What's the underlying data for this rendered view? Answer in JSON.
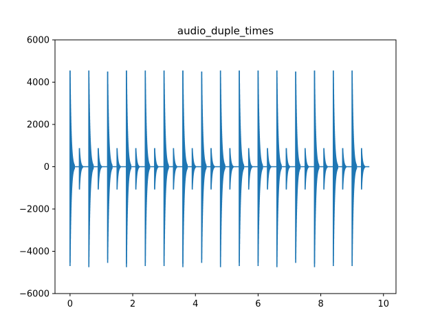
{
  "chart_data": {
    "type": "line",
    "title": "audio_duple_times",
    "xlabel": "",
    "ylabel": "",
    "xlim": [
      -0.48,
      10.4
    ],
    "ylim": [
      -6000,
      6000
    ],
    "x_ticks": [
      0,
      2,
      4,
      6,
      8,
      10
    ],
    "y_ticks": [
      -6000,
      -4000,
      -2000,
      0,
      2000,
      4000,
      6000
    ],
    "grid": false,
    "series": [
      {
        "color": "#1f77b4",
        "signal_end_x": 9.55,
        "strong_beats": [
          {
            "t": 0.0,
            "max": 4550,
            "min": -4700
          },
          {
            "t": 0.6,
            "max": 4550,
            "min": -4750
          },
          {
            "t": 1.2,
            "max": 4500,
            "min": -4550
          },
          {
            "t": 1.8,
            "max": 4550,
            "min": -4750
          },
          {
            "t": 2.4,
            "max": 4550,
            "min": -4700
          },
          {
            "t": 3.0,
            "max": 4550,
            "min": -4700
          },
          {
            "t": 3.6,
            "max": 4550,
            "min": -4750
          },
          {
            "t": 4.2,
            "max": 4500,
            "min": -4550
          },
          {
            "t": 4.8,
            "max": 4550,
            "min": -4750
          },
          {
            "t": 5.4,
            "max": 4550,
            "min": -4700
          },
          {
            "t": 6.0,
            "max": 4550,
            "min": -4700
          },
          {
            "t": 6.6,
            "max": 4550,
            "min": -4750
          },
          {
            "t": 7.2,
            "max": 4500,
            "min": -4550
          },
          {
            "t": 7.8,
            "max": 4550,
            "min": -4750
          },
          {
            "t": 8.4,
            "max": 4550,
            "min": -4700
          },
          {
            "t": 9.0,
            "max": 4550,
            "min": -4700
          }
        ],
        "weak_beats": [
          {
            "t": 0.3,
            "max": 880,
            "min": -1080
          },
          {
            "t": 0.9,
            "max": 880,
            "min": -1080
          },
          {
            "t": 1.5,
            "max": 880,
            "min": -1080
          },
          {
            "t": 2.1,
            "max": 880,
            "min": -1080
          },
          {
            "t": 2.7,
            "max": 880,
            "min": -1080
          },
          {
            "t": 3.3,
            "max": 880,
            "min": -1080
          },
          {
            "t": 3.9,
            "max": 880,
            "min": -1080
          },
          {
            "t": 4.5,
            "max": 880,
            "min": -1080
          },
          {
            "t": 5.1,
            "max": 880,
            "min": -1080
          },
          {
            "t": 5.7,
            "max": 880,
            "min": -1080
          },
          {
            "t": 6.3,
            "max": 880,
            "min": -1080
          },
          {
            "t": 6.9,
            "max": 880,
            "min": -1080
          },
          {
            "t": 7.5,
            "max": 880,
            "min": -1080
          },
          {
            "t": 8.1,
            "max": 880,
            "min": -1080
          },
          {
            "t": 8.7,
            "max": 880,
            "min": -1080
          },
          {
            "t": 9.3,
            "max": 880,
            "min": -1080
          }
        ]
      }
    ]
  }
}
